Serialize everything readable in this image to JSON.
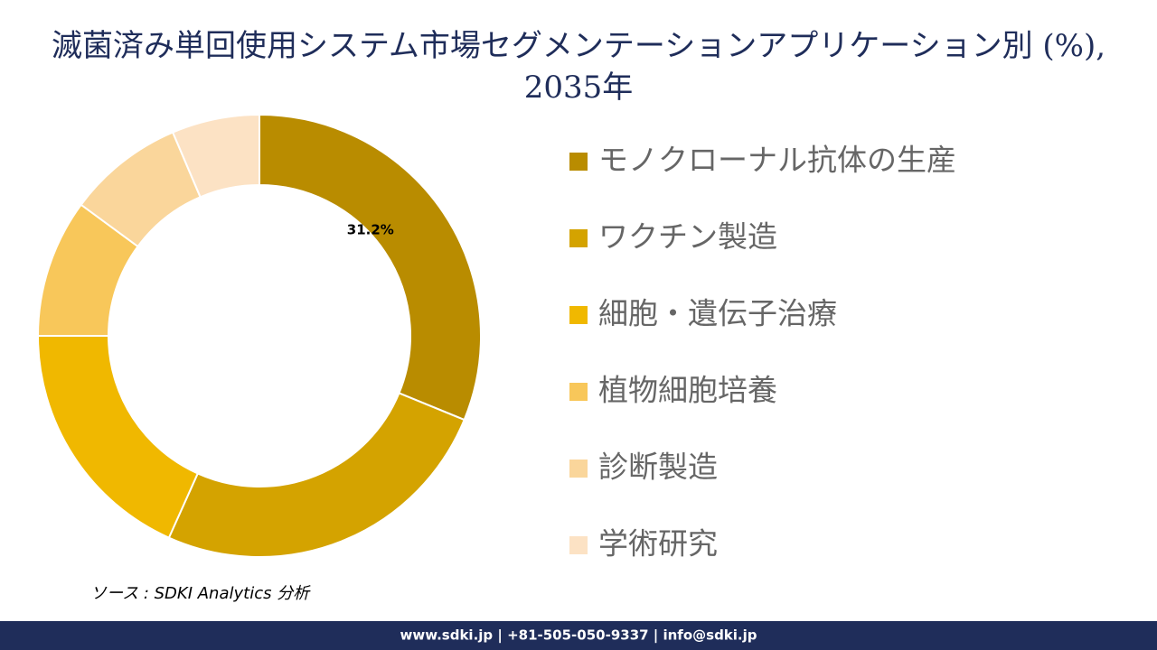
{
  "chart_data": {
    "type": "donut",
    "title": "滅菌済み単回使用システム市場セグメンテーションアプリケーション別 (%), 2035年",
    "categories": [
      "モノクローナル抗体の生産",
      "ワクチン製造",
      "細胞・遺伝子治療",
      "植物細胞培養",
      "診断製造",
      "学術研究"
    ],
    "values": [
      31.2,
      25.5,
      18.3,
      10.1,
      8.5,
      6.4
    ],
    "value_labels": [
      "31.2%",
      null,
      null,
      null,
      null,
      null
    ],
    "colors": [
      "#B98C00",
      "#D4A300",
      "#F0B800",
      "#F8C75A",
      "#FAD69B",
      "#FCE2C4"
    ],
    "legend": "right",
    "source": "ソース : SDKI Analytics 分析",
    "footer": "www.sdki.jp | +81-505-050-9337 | info@sdki.jp"
  }
}
